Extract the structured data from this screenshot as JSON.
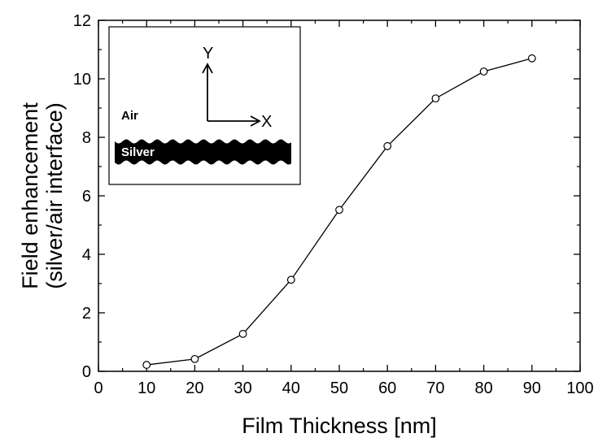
{
  "chart_data": {
    "type": "line",
    "title": "",
    "xlabel": "Film Thickness [nm]",
    "ylabel_line1": "Field enhancement",
    "ylabel_line2": "(silver/air interface)",
    "xlim": [
      0,
      100
    ],
    "ylim": [
      0,
      12
    ],
    "x_ticks": [
      0,
      10,
      20,
      30,
      40,
      50,
      60,
      70,
      80,
      90,
      100
    ],
    "y_ticks": [
      0,
      2,
      4,
      6,
      8,
      10,
      12
    ],
    "grid": false,
    "legend": "none",
    "marker": "open-circle",
    "series": [
      {
        "x": [
          10,
          20,
          30,
          40,
          50,
          60,
          70,
          80,
          90
        ],
        "y": [
          0.22,
          0.42,
          1.28,
          3.13,
          5.52,
          7.7,
          9.33,
          10.25,
          10.7
        ]
      }
    ],
    "inset": {
      "air_label": "Air",
      "silver_label": "Silver",
      "x_axis_label": "X",
      "y_axis_label": "Y"
    }
  },
  "colors": {
    "line": "#000000",
    "marker_fill": "#ffffff",
    "silver_film": "#000000",
    "silver_text": "#ffffff"
  }
}
